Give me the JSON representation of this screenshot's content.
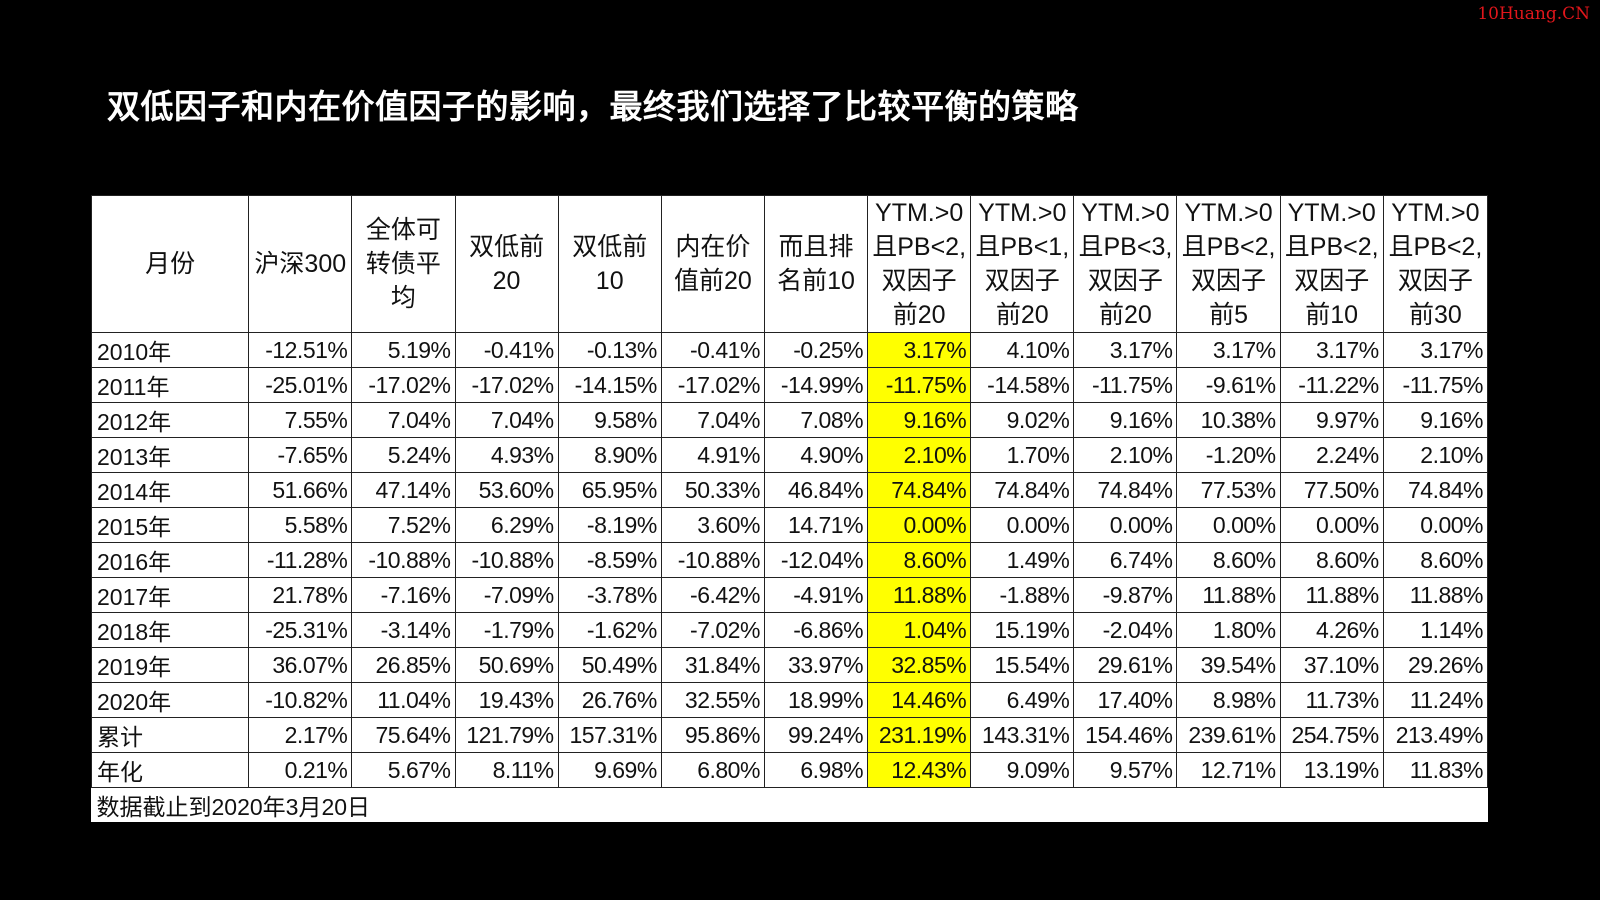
{
  "watermark": "10Huang.CN",
  "title": "双低因子和内在价值因子的影响，最终我们选择了比较平衡的策略",
  "table": {
    "headers": [
      "月份",
      "沪深300",
      "全体可转债平均",
      "双低前20",
      "双低前10",
      "内在价值前20",
      "而且排名前10",
      "YTM.>0且PB<2,双因子前20",
      "YTM.>0且PB<1,双因子前20",
      "YTM.>0且PB<3,双因子前20",
      "YTM.>0且PB<2,双因子前5",
      "YTM.>0且PB<2,双因子前10",
      "YTM.>0且PB<2,双因子前30"
    ],
    "highlight_column_index": 7,
    "highlight_color": "#ffff00",
    "rows": [
      [
        "2010年",
        "-12.51%",
        "5.19%",
        "-0.41%",
        "-0.13%",
        "-0.41%",
        "-0.25%",
        "3.17%",
        "4.10%",
        "3.17%",
        "3.17%",
        "3.17%",
        "3.17%"
      ],
      [
        "2011年",
        "-25.01%",
        "-17.02%",
        "-17.02%",
        "-14.15%",
        "-17.02%",
        "-14.99%",
        "-11.75%",
        "-14.58%",
        "-11.75%",
        "-9.61%",
        "-11.22%",
        "-11.75%"
      ],
      [
        "2012年",
        "7.55%",
        "7.04%",
        "7.04%",
        "9.58%",
        "7.04%",
        "7.08%",
        "9.16%",
        "9.02%",
        "9.16%",
        "10.38%",
        "9.97%",
        "9.16%"
      ],
      [
        "2013年",
        "-7.65%",
        "5.24%",
        "4.93%",
        "8.90%",
        "4.91%",
        "4.90%",
        "2.10%",
        "1.70%",
        "2.10%",
        "-1.20%",
        "2.24%",
        "2.10%"
      ],
      [
        "2014年",
        "51.66%",
        "47.14%",
        "53.60%",
        "65.95%",
        "50.33%",
        "46.84%",
        "74.84%",
        "74.84%",
        "74.84%",
        "77.53%",
        "77.50%",
        "74.84%"
      ],
      [
        "2015年",
        "5.58%",
        "7.52%",
        "6.29%",
        "-8.19%",
        "3.60%",
        "14.71%",
        "0.00%",
        "0.00%",
        "0.00%",
        "0.00%",
        "0.00%",
        "0.00%"
      ],
      [
        "2016年",
        "-11.28%",
        "-10.88%",
        "-10.88%",
        "-8.59%",
        "-10.88%",
        "-12.04%",
        "8.60%",
        "1.49%",
        "6.74%",
        "8.60%",
        "8.60%",
        "8.60%"
      ],
      [
        "2017年",
        "21.78%",
        "-7.16%",
        "-7.09%",
        "-3.78%",
        "-6.42%",
        "-4.91%",
        "11.88%",
        "-1.88%",
        "-9.87%",
        "11.88%",
        "11.88%",
        "11.88%"
      ],
      [
        "2018年",
        "-25.31%",
        "-3.14%",
        "-1.79%",
        "-1.62%",
        "-7.02%",
        "-6.86%",
        "1.04%",
        "15.19%",
        "-2.04%",
        "1.80%",
        "4.26%",
        "1.14%"
      ],
      [
        "2019年",
        "36.07%",
        "26.85%",
        "50.69%",
        "50.49%",
        "31.84%",
        "33.97%",
        "32.85%",
        "15.54%",
        "29.61%",
        "39.54%",
        "37.10%",
        "29.26%"
      ],
      [
        "2020年",
        "-10.82%",
        "11.04%",
        "19.43%",
        "26.76%",
        "32.55%",
        "18.99%",
        "14.46%",
        "6.49%",
        "17.40%",
        "8.98%",
        "11.73%",
        "11.24%"
      ],
      [
        "累计",
        "2.17%",
        "75.64%",
        "121.79%",
        "157.31%",
        "95.86%",
        "99.24%",
        "231.19%",
        "143.31%",
        "154.46%",
        "239.61%",
        "254.75%",
        "213.49%"
      ],
      [
        "年化",
        "0.21%",
        "5.67%",
        "8.11%",
        "9.69%",
        "6.80%",
        "6.98%",
        "12.43%",
        "9.09%",
        "9.57%",
        "12.71%",
        "13.19%",
        "11.83%"
      ]
    ],
    "note": "数据截止到2020年3月20日"
  }
}
